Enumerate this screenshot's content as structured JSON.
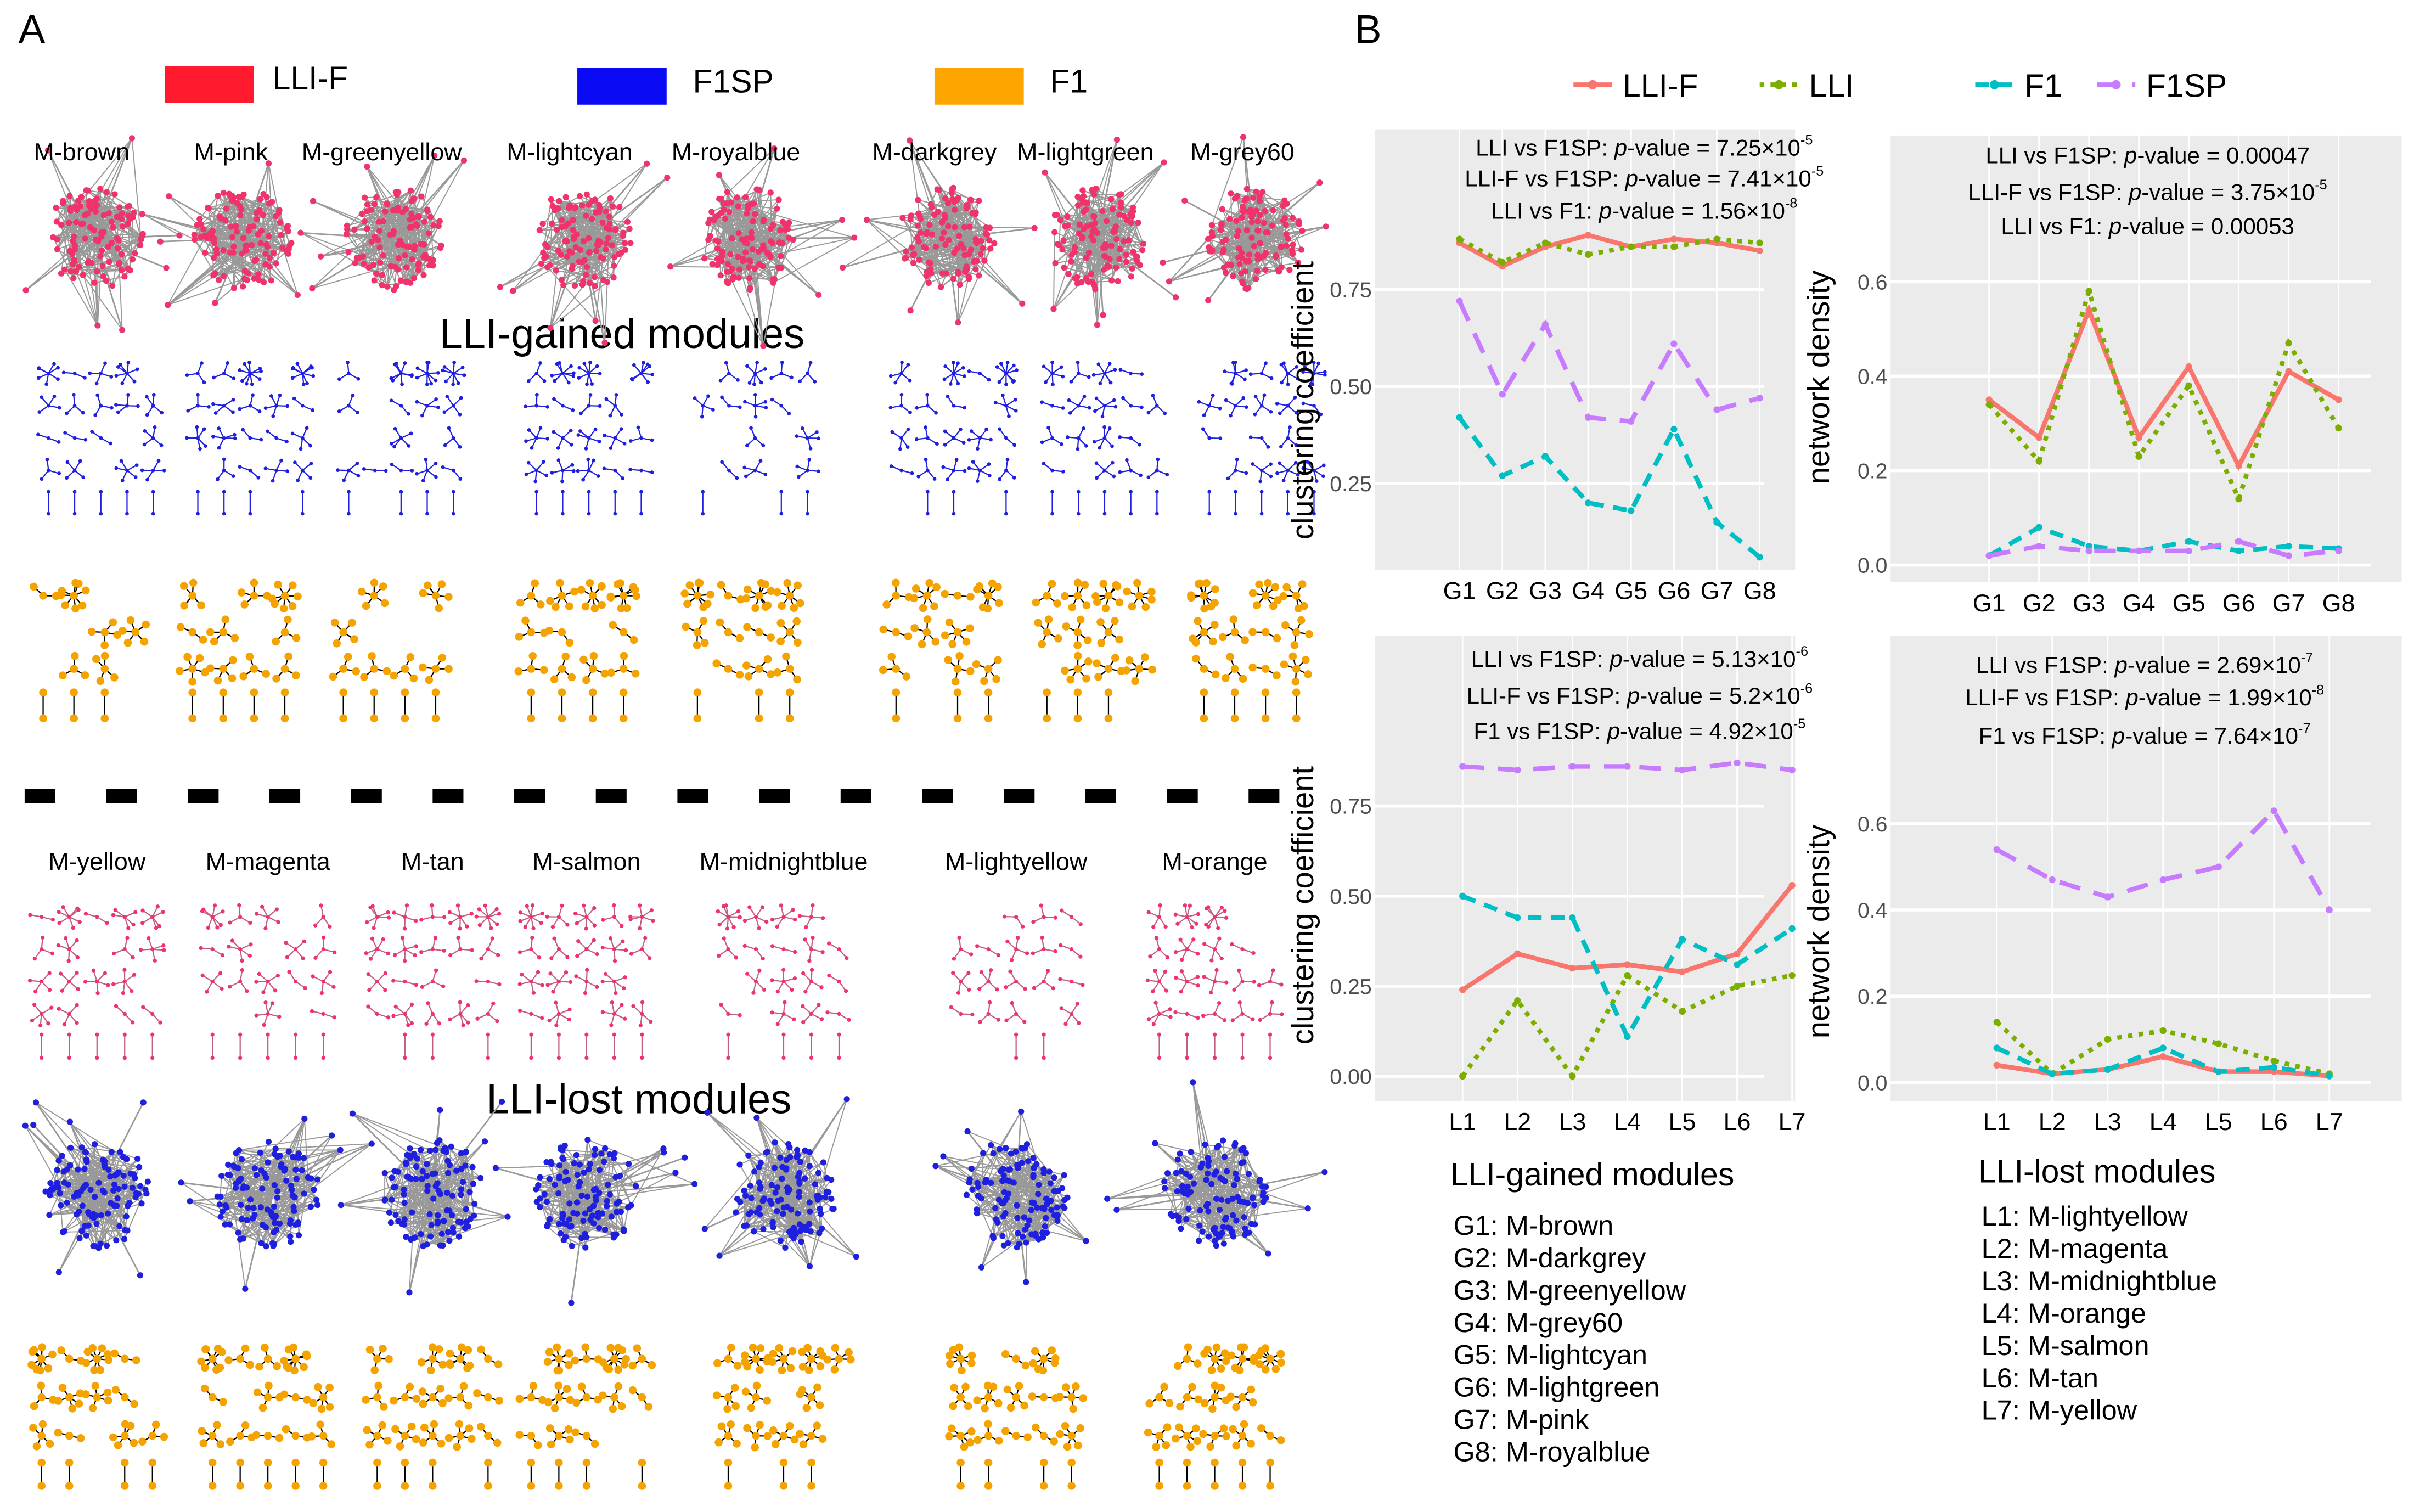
{
  "panel_a": {
    "letter": "A",
    "legend": [
      {
        "label": "LLI-F",
        "color": "#FF1A2E"
      },
      {
        "label": "F1SP",
        "color": "#0A0AF5"
      },
      {
        "label": "F1",
        "color": "#FFA500"
      }
    ],
    "gained_title": "LLI-gained modules",
    "lost_title": "LLI-lost modules",
    "gained_modules": [
      "M-brown",
      "M-pink",
      "M-greenyellow",
      "M-lightcyan",
      "M-royalblue",
      "M-darkgrey",
      "M-lightgreen",
      "M-grey60"
    ],
    "lost_modules": [
      "M-yellow",
      "M-magenta",
      "M-tan",
      "M-salmon",
      "M-midnightblue",
      "M-lightyellow",
      "M-orange"
    ],
    "node_colors": {
      "llif": "#F0336A",
      "f1sp": "#1F1FE0",
      "f1": "#F5A300",
      "edge_gray": "#999999"
    }
  },
  "panel_b": {
    "letter": "B",
    "legend": [
      {
        "label": "LLI-F",
        "color": "#F8766D",
        "dash": "solid"
      },
      {
        "label": "LLI",
        "color": "#7CAE00",
        "dash": "dotted"
      },
      {
        "label": "F1",
        "color": "#00BFC4",
        "dash": "dashed"
      },
      {
        "label": "F1SP",
        "color": "#C77CFF",
        "dash": "longdash"
      }
    ],
    "gained_list": {
      "title": "LLI-gained modules",
      "items": [
        "G1: M-brown",
        "G2: M-darkgrey",
        "G3: M-greenyellow",
        "G4: M-grey60",
        "G5: M-lightcyan",
        "G6: M-lightgreen",
        "G7: M-pink",
        "G8: M-royalblue"
      ]
    },
    "lost_list": {
      "title": "LLI-lost modules",
      "items": [
        "L1: M-lightyellow",
        "L2: M-magenta",
        "L3: M-midnightblue",
        "L4: M-orange",
        "L5: M-salmon",
        "L6: M-tan",
        "L7: M-yellow"
      ]
    }
  },
  "chart_data": [
    {
      "type": "line",
      "ylabel": "clustering coefficient",
      "xlabel": "",
      "categories": [
        "G1",
        "G2",
        "G3",
        "G4",
        "G5",
        "G6",
        "G7",
        "G8"
      ],
      "ylim": [
        0.04,
        0.95
      ],
      "yticks": [
        0.25,
        0.5,
        0.75
      ],
      "ytick_labels": [
        "0.25",
        "0.50",
        "0.75"
      ],
      "grid": true,
      "annotations": [
        {
          "label": "LLI vs F1SP: ",
          "p": "p",
          "rest": "-value = 7.25×10",
          "exp": "-5"
        },
        {
          "label": "LLI-F vs F1SP: ",
          "p": "p",
          "rest": "-value = 7.41×10",
          "exp": "-5"
        },
        {
          "label": "LLI vs F1: ",
          "p": "p",
          "rest": "-value = 1.56×10",
          "exp": "-8"
        }
      ],
      "series": [
        {
          "name": "LLI-F",
          "values": [
            0.87,
            0.81,
            0.86,
            0.89,
            0.86,
            0.88,
            0.87,
            0.85
          ]
        },
        {
          "name": "LLI",
          "values": [
            0.88,
            0.82,
            0.87,
            0.84,
            0.86,
            0.86,
            0.88,
            0.87
          ]
        },
        {
          "name": "F1",
          "values": [
            0.42,
            0.27,
            0.32,
            0.2,
            0.18,
            0.39,
            0.15,
            0.06
          ]
        },
        {
          "name": "F1SP",
          "values": [
            0.72,
            0.48,
            0.66,
            0.42,
            0.41,
            0.61,
            0.44,
            0.47
          ]
        }
      ]
    },
    {
      "type": "line",
      "ylabel": "network density",
      "xlabel": "",
      "categories": [
        "G1",
        "G2",
        "G3",
        "G4",
        "G5",
        "G6",
        "G7",
        "G8"
      ],
      "ylim": [
        0,
        0.75
      ],
      "yticks": [
        0,
        0.2,
        0.4,
        0.6
      ],
      "ytick_labels": [
        "0.0",
        "0.2",
        "0.4",
        "0.6"
      ],
      "grid": true,
      "annotations": [
        {
          "label": "LLI vs F1SP:  ",
          "p": "p",
          "rest": "-value = 0.00047",
          "exp": ""
        },
        {
          "label": "LLI-F vs F1SP:  ",
          "p": "p",
          "rest": "-value = 3.75×10",
          "exp": "-5"
        },
        {
          "label": "LLI vs F1:  ",
          "p": "p",
          "rest": "-value = 0.00053",
          "exp": ""
        }
      ],
      "series": [
        {
          "name": "LLI-F",
          "values": [
            0.35,
            0.27,
            0.54,
            0.27,
            0.42,
            0.21,
            0.41,
            0.35
          ]
        },
        {
          "name": "LLI",
          "values": [
            0.34,
            0.22,
            0.58,
            0.23,
            0.38,
            0.14,
            0.47,
            0.29
          ]
        },
        {
          "name": "F1",
          "values": [
            0.02,
            0.08,
            0.04,
            0.03,
            0.05,
            0.03,
            0.04,
            0.035
          ]
        },
        {
          "name": "F1SP",
          "values": [
            0.02,
            0.04,
            0.03,
            0.03,
            0.03,
            0.05,
            0.02,
            0.03
          ]
        }
      ]
    },
    {
      "type": "line",
      "ylabel": "clustering coefficient",
      "xlabel": "",
      "categories": [
        "L1",
        "L2",
        "L3",
        "L4",
        "L5",
        "L6",
        "L7"
      ],
      "ylim": [
        -0.03,
        1.2
      ],
      "yticks": [
        0,
        0.25,
        0.5,
        0.75
      ],
      "ytick_labels": [
        "0.00",
        "0.25",
        "0.50",
        "0.75"
      ],
      "grid": true,
      "annotations": [
        {
          "label": "LLI vs F1SP: ",
          "p": "p",
          "rest": "-value = 5.13×10",
          "exp": "-6"
        },
        {
          "label": "LLI-F vs F1SP: ",
          "p": "p",
          "rest": "-value = 5.2×10",
          "exp": "-6"
        },
        {
          "label": "F1 vs F1SP: ",
          "p": "p",
          "rest": "-value = 4.92×10",
          "exp": "-5"
        }
      ],
      "series": [
        {
          "name": "LLI-F",
          "values": [
            0.24,
            0.34,
            0.3,
            0.31,
            0.29,
            0.34,
            0.53
          ]
        },
        {
          "name": "LLI",
          "values": [
            0.0,
            0.21,
            0.0,
            0.28,
            0.18,
            0.25,
            0.28
          ]
        },
        {
          "name": "F1",
          "values": [
            0.5,
            0.44,
            0.44,
            0.11,
            0.38,
            0.31,
            0.41
          ]
        },
        {
          "name": "F1SP",
          "values": [
            0.86,
            0.85,
            0.86,
            0.86,
            0.85,
            0.87,
            0.85
          ]
        }
      ]
    },
    {
      "type": "line",
      "ylabel": "network density",
      "xlabel": "",
      "categories": [
        "L1",
        "L2",
        "L3",
        "L4",
        "L5",
        "L6",
        "L7"
      ],
      "ylim": [
        -0.02,
        1.0
      ],
      "yticks": [
        0,
        0.2,
        0.4,
        0.6
      ],
      "ytick_labels": [
        "0.0",
        "0.2",
        "0.4",
        "0.6"
      ],
      "grid": true,
      "annotations": [
        {
          "label": "LLI vs F1SP:  ",
          "p": "p",
          "rest": "-value = 2.69×10",
          "exp": "-7"
        },
        {
          "label": "LLI-F vs F1SP:  ",
          "p": "p",
          "rest": "-value = 1.99×10",
          "exp": "-8"
        },
        {
          "label": "F1 vs F1SP:  ",
          "p": "p",
          "rest": "-value = 7.64×10",
          "exp": "-7"
        }
      ],
      "series": [
        {
          "name": "LLI-F",
          "values": [
            0.04,
            0.02,
            0.03,
            0.06,
            0.025,
            0.025,
            0.015
          ]
        },
        {
          "name": "LLI",
          "values": [
            0.14,
            0.02,
            0.1,
            0.12,
            0.09,
            0.05,
            0.02
          ]
        },
        {
          "name": "F1",
          "values": [
            0.08,
            0.02,
            0.03,
            0.08,
            0.025,
            0.035,
            0.015
          ]
        },
        {
          "name": "F1SP",
          "values": [
            0.54,
            0.47,
            0.43,
            0.47,
            0.5,
            0.63,
            0.4
          ]
        }
      ]
    }
  ]
}
